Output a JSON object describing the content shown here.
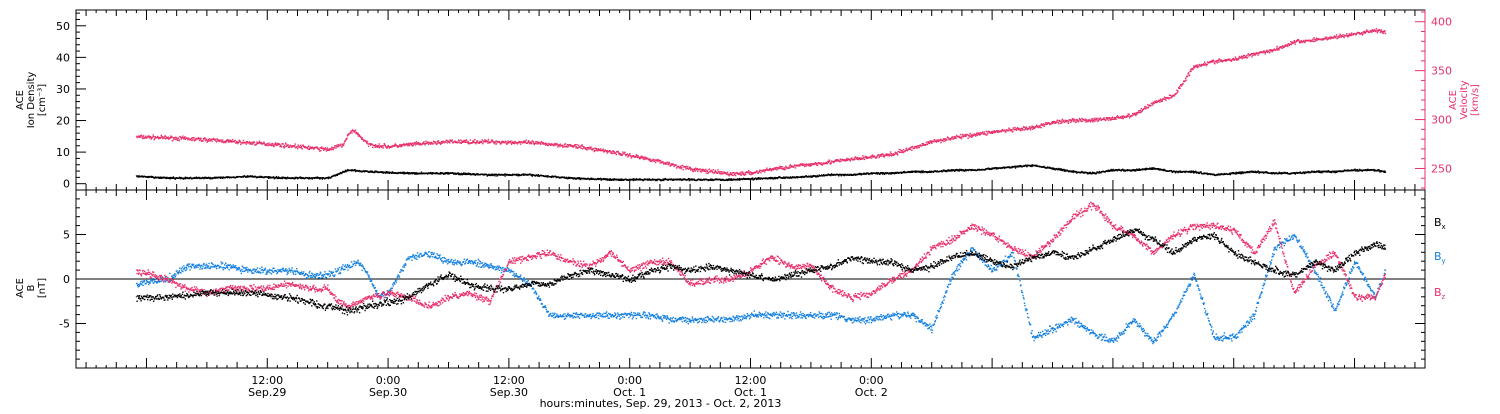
{
  "chart_data": [
    {
      "type": "scatter",
      "panel": "top",
      "ylabel_left": [
        "ACE",
        "Ion Density",
        "[cm⁻³]"
      ],
      "ylabel_right": [
        "ACE",
        "Velocity",
        "[km/s]"
      ],
      "ylim_left": [
        -2,
        55
      ],
      "ylim_right": [
        228,
        412
      ],
      "yticks_left": [
        0,
        10,
        20,
        30,
        40,
        50
      ],
      "yticks_right": [
        250,
        300,
        350,
        400
      ],
      "colors": {
        "density": "#000000",
        "velocity": "#e8306a"
      },
      "series": [
        {
          "axis": "left",
          "x": [
            -1,
            2,
            6,
            10,
            14,
            18,
            20,
            22,
            26,
            30,
            34,
            38,
            42,
            46,
            50,
            54,
            58,
            62,
            66,
            68,
            70,
            72,
            74,
            76,
            78,
            80,
            82,
            84,
            86,
            88,
            90,
            92,
            94,
            96,
            98,
            100,
            102,
            104,
            106,
            108,
            110,
            112,
            114,
            116,
            118,
            120,
            122,
            123
          ],
          "y": [
            2.5,
            2,
            2,
            2.5,
            2,
            2,
            4.5,
            4,
            3.5,
            3.5,
            3,
            3,
            2,
            1.5,
            1.5,
            1.5,
            1.5,
            2,
            2.5,
            3,
            3,
            3.5,
            3.5,
            4,
            4,
            4.5,
            4.5,
            5,
            5.5,
            6,
            5,
            4,
            3.5,
            4.5,
            4.5,
            5,
            4,
            4,
            3,
            3.5,
            4,
            3.5,
            3.5,
            4,
            4,
            4.5,
            4.5,
            4
          ]
        },
        {
          "axis": "right",
          "x": [
            -1,
            2,
            6,
            10,
            13,
            16,
            18,
            19.5,
            20,
            20.5,
            21,
            22,
            24,
            26,
            30,
            34,
            38,
            42,
            46,
            50,
            54,
            58,
            60,
            62,
            66,
            70,
            74,
            78,
            80,
            82,
            84,
            86,
            88,
            90,
            92,
            94,
            96,
            98,
            100,
            102,
            104,
            106,
            108,
            110,
            112,
            114,
            116,
            118,
            120,
            121,
            122,
            123
          ],
          "y": [
            283,
            282,
            280,
            277,
            275,
            272,
            270,
            275,
            285,
            290,
            285,
            275,
            273,
            275,
            278,
            278,
            277,
            274,
            268,
            260,
            250,
            245,
            246,
            250,
            255,
            260,
            265,
            278,
            282,
            285,
            288,
            290,
            292,
            298,
            300,
            300,
            302,
            305,
            318,
            325,
            355,
            360,
            362,
            368,
            372,
            380,
            382,
            385,
            388,
            390,
            392,
            390
          ]
        }
      ]
    },
    {
      "type": "scatter",
      "panel": "bottom",
      "ylabel": [
        "ACE",
        "B",
        "[nT]"
      ],
      "ylim": [
        -10,
        10
      ],
      "yticks": [
        -5,
        0,
        5
      ],
      "zero_line": true,
      "colors": {
        "Bx": "#000000",
        "By": "#1580e0",
        "Bz": "#e8306a"
      },
      "legend": [
        {
          "base": "B",
          "sub": "x",
          "color": "#000000"
        },
        {
          "base": "B",
          "sub": "y",
          "color": "#1580e0"
        },
        {
          "base": "B",
          "sub": "z",
          "color": "#e8306a"
        }
      ],
      "series": [
        {
          "axis": "left",
          "x": [
            -1,
            2,
            6,
            10,
            14,
            18,
            20,
            22,
            24,
            26,
            28,
            30,
            32,
            34,
            36,
            38,
            40,
            42,
            44,
            46,
            48,
            50,
            52,
            54,
            56,
            58,
            60,
            62,
            64,
            66,
            68,
            70,
            72,
            74,
            76,
            78,
            80,
            82,
            84,
            86,
            88,
            90,
            92,
            94,
            96,
            98,
            100,
            102,
            104,
            106,
            108,
            110,
            112,
            114,
            116,
            118,
            120,
            122,
            123
          ],
          "y": [
            -2,
            -2,
            -1.5,
            -1.5,
            -2,
            -3,
            -3.5,
            -3,
            -2.5,
            -2,
            -0.5,
            0.5,
            -0.5,
            -1,
            -1,
            -0.5,
            -0.5,
            0.5,
            1,
            0.5,
            0,
            1,
            1.5,
            1,
            1.5,
            1,
            0.5,
            0,
            0.5,
            1,
            1.5,
            2.5,
            2,
            2,
            1,
            1.5,
            2.5,
            3,
            2,
            1.5,
            2.5,
            3,
            2.5,
            3.5,
            4.5,
            5.5,
            4.5,
            3,
            4.5,
            5,
            3,
            2,
            1,
            0.5,
            2,
            1,
            3,
            4,
            3.5
          ]
        },
        {
          "axis": "left",
          "x": [
            -1,
            2,
            4,
            6,
            8,
            10,
            12,
            14,
            16,
            18,
            20,
            21,
            22,
            23,
            24,
            25,
            26,
            28,
            30,
            32,
            34,
            36,
            38,
            40,
            42,
            44,
            46,
            48,
            50,
            52,
            54,
            56,
            58,
            60,
            62,
            64,
            66,
            68,
            70,
            72,
            74,
            76,
            78,
            80,
            82,
            84,
            86,
            88,
            90,
            92,
            94,
            96,
            98,
            100,
            102,
            104,
            106,
            108,
            110,
            112,
            114,
            116,
            118,
            120,
            122,
            123
          ],
          "y": [
            -0.5,
            0,
            1.5,
            1.5,
            1.5,
            1,
            1,
            1,
            0.5,
            0.5,
            1.5,
            2,
            0.5,
            -2,
            -1.5,
            0.5,
            2.5,
            3,
            2,
            2,
            1.5,
            1,
            -0.5,
            -4,
            -4,
            -4,
            -4,
            -4,
            -4,
            -4.5,
            -4.5,
            -4.5,
            -4.5,
            -4,
            -4,
            -4,
            -4,
            -4,
            -4.5,
            -4.5,
            -4,
            -4,
            -5.5,
            0.5,
            3.5,
            1,
            3,
            -6.5,
            -5.5,
            -4.5,
            -6,
            -7,
            -4.5,
            -7,
            -4,
            0.5,
            -6.5,
            -6.5,
            -4,
            3.5,
            5,
            1,
            -3.5,
            2,
            -2,
            1
          ]
        },
        {
          "axis": "left",
          "x": [
            -1,
            2,
            4,
            6,
            8,
            10,
            12,
            14,
            16,
            18,
            19,
            20,
            22,
            24,
            26,
            28,
            30,
            32,
            34,
            36,
            38,
            40,
            42,
            44,
            46,
            48,
            50,
            52,
            54,
            56,
            58,
            60,
            62,
            64,
            66,
            68,
            70,
            72,
            74,
            76,
            78,
            80,
            82,
            84,
            86,
            88,
            90,
            92,
            94,
            96,
            98,
            100,
            102,
            104,
            106,
            108,
            110,
            112,
            114,
            116,
            118,
            120,
            122,
            123
          ],
          "y": [
            1,
            0,
            -1,
            -1.5,
            -1,
            -1,
            -1,
            -0.5,
            -1,
            -1,
            -2.5,
            -3,
            -2,
            -1.5,
            -2,
            -3,
            -2,
            -1.5,
            -2.5,
            2,
            2.5,
            3,
            2,
            1.5,
            3,
            1,
            2,
            2,
            -0.5,
            0,
            0,
            1,
            2.5,
            1.5,
            1.5,
            -1,
            -2,
            -1.5,
            0,
            1,
            3.5,
            4.5,
            6,
            5,
            3.5,
            2.5,
            4.5,
            7,
            8.5,
            6,
            5,
            3,
            5,
            6,
            6,
            5.5,
            3,
            6.5,
            -1.5,
            1.5,
            3,
            -2,
            -2,
            0.5
          ]
        }
      ]
    }
  ],
  "time_axis": {
    "xlim": [
      -7,
      127
    ],
    "minor_tick_hours": 1,
    "major_tick_hours": 3,
    "labels": [
      {
        "x": 12,
        "time": "12:00",
        "date": "Sep.29"
      },
      {
        "x": 24,
        "time": "0:00",
        "date": "Sep.30"
      },
      {
        "x": 36,
        "time": "12:00",
        "date": "Sep.30"
      },
      {
        "x": 48,
        "time": "0:00",
        "date": "Oct. 1"
      },
      {
        "x": 60,
        "time": "12:00",
        "date": "Oct. 1"
      },
      {
        "x": 72,
        "time": "0:00",
        "date": "Oct. 2"
      }
    ],
    "xlabel": "hours:minutes, Sep. 29, 2013 - Oct.  2, 2013"
  }
}
